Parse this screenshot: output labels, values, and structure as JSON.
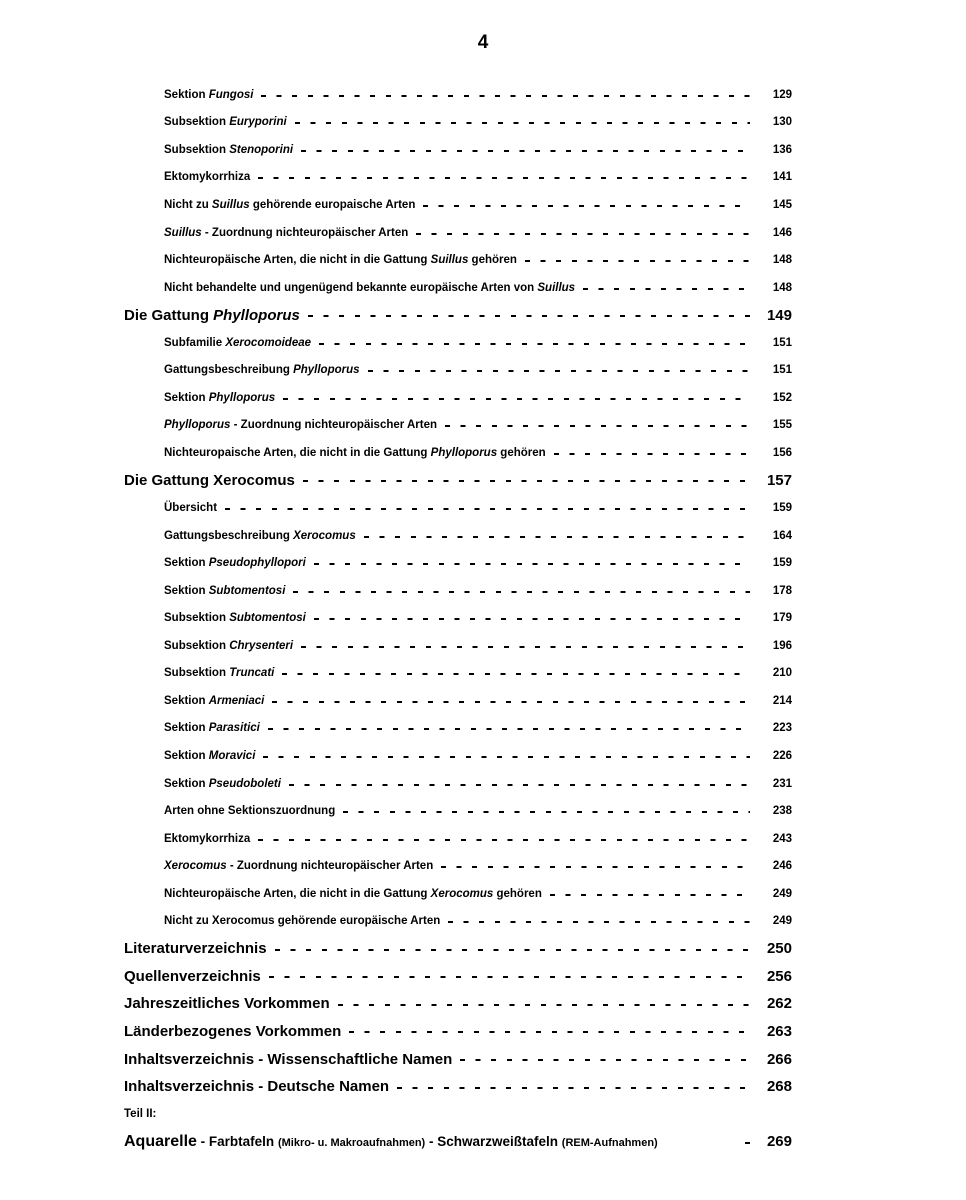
{
  "page_number": "4",
  "entries": [
    {
      "level": 1,
      "parts": [
        {
          "t": "Sektion "
        },
        {
          "t": "Fungosi",
          "i": true
        }
      ],
      "page": "129"
    },
    {
      "level": 1,
      "parts": [
        {
          "t": "Subsektion "
        },
        {
          "t": "Euryporini",
          "i": true
        }
      ],
      "page": "130"
    },
    {
      "level": 1,
      "parts": [
        {
          "t": "Subsektion "
        },
        {
          "t": "Stenoporini",
          "i": true
        }
      ],
      "page": "136"
    },
    {
      "level": 1,
      "parts": [
        {
          "t": "Ektomykorrhiza"
        }
      ],
      "page": "141"
    },
    {
      "level": 1,
      "parts": [
        {
          "t": "Nicht zu "
        },
        {
          "t": "Suillus",
          "i": true
        },
        {
          "t": " gehörende europaische Arten"
        }
      ],
      "page": "145"
    },
    {
      "level": 1,
      "parts": [
        {
          "t": "Suillus",
          "i": true
        },
        {
          "t": " - Zuordnung nichteuropäischer Arten"
        }
      ],
      "page": "146"
    },
    {
      "level": 1,
      "parts": [
        {
          "t": "Nichteuropäische Arten, die nicht in die Gattung "
        },
        {
          "t": "Suillus",
          "i": true
        },
        {
          "t": " gehören"
        }
      ],
      "page": "148"
    },
    {
      "level": 1,
      "parts": [
        {
          "t": "Nicht behandelte und ungenügend bekannte europäische Arten von "
        },
        {
          "t": "Suillus",
          "i": true
        }
      ],
      "page": "148"
    },
    {
      "level": 0,
      "parts": [
        {
          "t": "Die Gattung  "
        },
        {
          "t": "Phylloporus",
          "i": true
        }
      ],
      "page": "149"
    },
    {
      "level": 1,
      "parts": [
        {
          "t": "Subfamilie "
        },
        {
          "t": "Xerocomoideae",
          "i": true
        }
      ],
      "page": "151"
    },
    {
      "level": 1,
      "parts": [
        {
          "t": "Gattungsbeschreibung "
        },
        {
          "t": "Phylloporus",
          "i": true
        }
      ],
      "page": "151"
    },
    {
      "level": 1,
      "parts": [
        {
          "t": "Sektion "
        },
        {
          "t": "Phylloporus",
          "i": true
        }
      ],
      "page": "152"
    },
    {
      "level": 1,
      "parts": [
        {
          "t": "Phylloporus",
          "i": true
        },
        {
          "t": " - Zuordnung nichteuropäischer Arten"
        }
      ],
      "page": "155"
    },
    {
      "level": 1,
      "parts": [
        {
          "t": "Nichteuropaische Arten, die nicht in die Gattung "
        },
        {
          "t": "Phylloporus",
          "i": true
        },
        {
          "t": " gehören"
        }
      ],
      "page": "156"
    },
    {
      "level": 0,
      "parts": [
        {
          "t": "Die Gattung  "
        },
        {
          "t": "Xerocomus",
          "i": false
        }
      ],
      "page": "157"
    },
    {
      "level": 1,
      "parts": [
        {
          "t": "Übersicht"
        }
      ],
      "page": "159"
    },
    {
      "level": 1,
      "parts": [
        {
          "t": "Gattungsbeschreibung "
        },
        {
          "t": "Xerocomus",
          "i": true
        }
      ],
      "page": "164"
    },
    {
      "level": 1,
      "parts": [
        {
          "t": "Sektion "
        },
        {
          "t": "Pseudophyllopori",
          "i": true
        }
      ],
      "page": "159"
    },
    {
      "level": 1,
      "parts": [
        {
          "t": "Sektion "
        },
        {
          "t": "Subtomentosi",
          "i": true
        }
      ],
      "page": "178"
    },
    {
      "level": 1,
      "parts": [
        {
          "t": "Subsektion "
        },
        {
          "t": "Subtomentosi",
          "i": true
        }
      ],
      "page": "179"
    },
    {
      "level": 1,
      "parts": [
        {
          "t": "Subsektion "
        },
        {
          "t": "Chrysenteri",
          "i": true
        }
      ],
      "page": "196"
    },
    {
      "level": 1,
      "parts": [
        {
          "t": "Subsektion "
        },
        {
          "t": "Truncati",
          "i": true
        }
      ],
      "page": "210"
    },
    {
      "level": 1,
      "parts": [
        {
          "t": "Sektion "
        },
        {
          "t": "Armeniaci",
          "i": true
        }
      ],
      "page": "214"
    },
    {
      "level": 1,
      "parts": [
        {
          "t": "Sektion "
        },
        {
          "t": "Parasitici",
          "i": true
        }
      ],
      "page": "223"
    },
    {
      "level": 1,
      "parts": [
        {
          "t": "Sektion "
        },
        {
          "t": "Moravici",
          "i": true
        }
      ],
      "page": "226"
    },
    {
      "level": 1,
      "parts": [
        {
          "t": "Sektion "
        },
        {
          "t": "Pseudoboleti",
          "i": true
        }
      ],
      "page": "231"
    },
    {
      "level": 1,
      "parts": [
        {
          "t": "Arten ohne Sektionszuordnung"
        }
      ],
      "page": "238"
    },
    {
      "level": 1,
      "parts": [
        {
          "t": "Ektomykorrhiza"
        }
      ],
      "page": "243"
    },
    {
      "level": 1,
      "parts": [
        {
          "t": "Xerocomus",
          "i": true
        },
        {
          "t": " - Zuordnung nichteuropäischer Arten"
        }
      ],
      "page": "246"
    },
    {
      "level": 1,
      "parts": [
        {
          "t": "Nichteuropäische Arten, die nicht in die Gattung "
        },
        {
          "t": "Xerocomus",
          "i": true
        },
        {
          "t": " gehören"
        }
      ],
      "page": "249"
    },
    {
      "level": 1,
      "parts": [
        {
          "t": "Nicht zu Xerocomus gehörende europäische Arten"
        }
      ],
      "page": "249"
    },
    {
      "level": 0,
      "parts": [
        {
          "t": "Literaturverzeichnis"
        }
      ],
      "page": "250"
    },
    {
      "level": 0,
      "parts": [
        {
          "t": "Quellenverzeichnis"
        }
      ],
      "page": "256"
    },
    {
      "level": 0,
      "parts": [
        {
          "t": "Jahreszeitliches Vorkommen"
        }
      ],
      "page": "262"
    },
    {
      "level": 0,
      "parts": [
        {
          "t": "Länderbezogenes Vorkommen"
        }
      ],
      "page": "263"
    },
    {
      "level": 0,
      "parts": [
        {
          "t": "Inhaltsverzeichnis - Wissenschaftliche Namen"
        }
      ],
      "page": "266"
    },
    {
      "level": 0,
      "parts": [
        {
          "t": "Inhaltsverzeichnis - Deutsche Namen"
        }
      ],
      "page": "268"
    },
    {
      "level": "t",
      "parts": [
        {
          "t": "Teil II:"
        }
      ],
      "page": ""
    },
    {
      "level": 0,
      "parts": [
        {
          "t": "Aquarelle",
          "s": "l"
        },
        {
          "t": " - ",
          "s": "m"
        },
        {
          "t": "Farbtafeln ",
          "s": "m"
        },
        {
          "t": "(Mikro- u. Makroaufnahmen)",
          "s": "s"
        },
        {
          "t": " - ",
          "s": "m"
        },
        {
          "t": "Schwarzweißtafeln ",
          "s": "m"
        },
        {
          "t": "(REM-Aufnahmen)",
          "s": "s"
        }
      ],
      "page": "269",
      "short_leader": true
    }
  ]
}
